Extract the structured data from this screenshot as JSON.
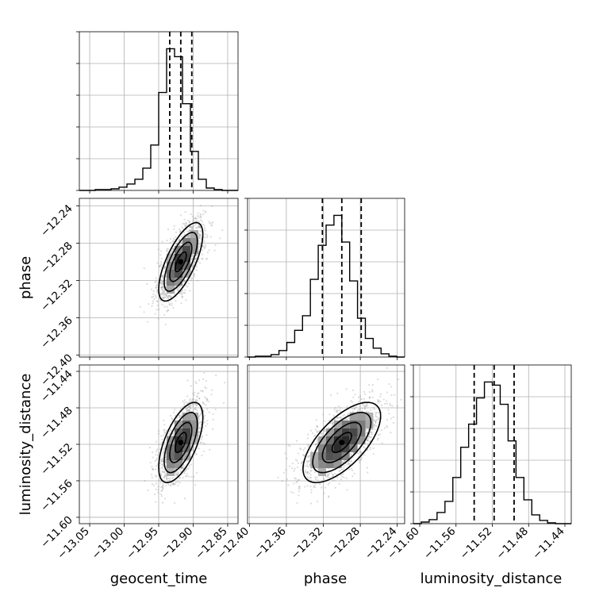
{
  "chart_data": {
    "type": "corner",
    "parameters": [
      "geocent_time",
      "phase",
      "luminosity_distance"
    ],
    "axis_labels": {
      "geocent_time": "geocent_time",
      "phase": "phase",
      "luminosity_distance": "luminosity_distance"
    },
    "ticks": {
      "geocent_time": [
        "−13.05",
        "−13.00",
        "−12.95",
        "−12.90",
        "−12.85"
      ],
      "phase": [
        "−12.40",
        "−12.36",
        "−12.32",
        "−12.28",
        "−12.24"
      ],
      "luminosity_distance": [
        "−11.60",
        "−11.56",
        "−11.52",
        "−11.48",
        "−11.44"
      ]
    },
    "ranges": {
      "geocent_time": [
        -13.065,
        -12.835
      ],
      "phase": [
        -12.402,
        -12.232
      ],
      "luminosity_distance": [
        -11.607,
        -11.433
      ]
    },
    "quantiles": {
      "geocent_time": [
        -12.934,
        -12.918,
        -12.902
      ],
      "phase": [
        -12.321,
        -12.3,
        -12.279
      ],
      "luminosity_distance": [
        -11.54,
        -11.518,
        -11.496
      ]
    },
    "histograms": {
      "geocent_time": {
        "edges": [
          -13.065,
          -13.0535,
          -13.042,
          -13.0305,
          -13.019,
          -13.0075,
          -12.996,
          -12.9845,
          -12.973,
          -12.9615,
          -12.95,
          -12.9385,
          -12.927,
          -12.9155,
          -12.904,
          -12.8925,
          -12.881,
          -12.8695,
          -12.858,
          -12.8465,
          -12.835
        ],
        "counts": [
          0,
          0,
          1,
          1,
          2,
          4,
          8,
          14,
          28,
          57,
          123,
          178,
          168,
          109,
          49,
          14,
          3,
          1,
          0,
          0
        ]
      },
      "phase": {
        "edges": [
          -12.402,
          -12.3935,
          -12.385,
          -12.3765,
          -12.368,
          -12.3595,
          -12.351,
          -12.3425,
          -12.334,
          -12.3255,
          -12.317,
          -12.3085,
          -12.3,
          -12.2915,
          -12.283,
          -12.2745,
          -12.266,
          -12.2575,
          -12.249,
          -12.2405,
          -12.232
        ],
        "counts": [
          0,
          1,
          1,
          3,
          8,
          18,
          33,
          51,
          96,
          138,
          163,
          175,
          142,
          94,
          48,
          23,
          11,
          4,
          1,
          0
        ]
      },
      "luminosity_distance": {
        "edges": [
          -11.607,
          -11.5983,
          -11.5896,
          -11.5809,
          -11.5722,
          -11.5635,
          -11.5548,
          -11.5461,
          -11.5374,
          -11.5287,
          -11.52,
          -11.5113,
          -11.5026,
          -11.4939,
          -11.4852,
          -11.4765,
          -11.4678,
          -11.4591,
          -11.4504,
          -11.4417,
          -11.433
        ],
        "counts": [
          0,
          2,
          5,
          14,
          28,
          58,
          96,
          125,
          158,
          178,
          174,
          150,
          104,
          58,
          30,
          11,
          4,
          1,
          0,
          0
        ]
      }
    },
    "correlation": {
      "phase|geocent_time": 0.7,
      "luminosity_distance|geocent_time": 0.62,
      "luminosity_distance|phase": 0.66
    },
    "contour_levels": [
      0.118,
      0.393,
      0.675,
      0.865
    ],
    "grid": true
  }
}
